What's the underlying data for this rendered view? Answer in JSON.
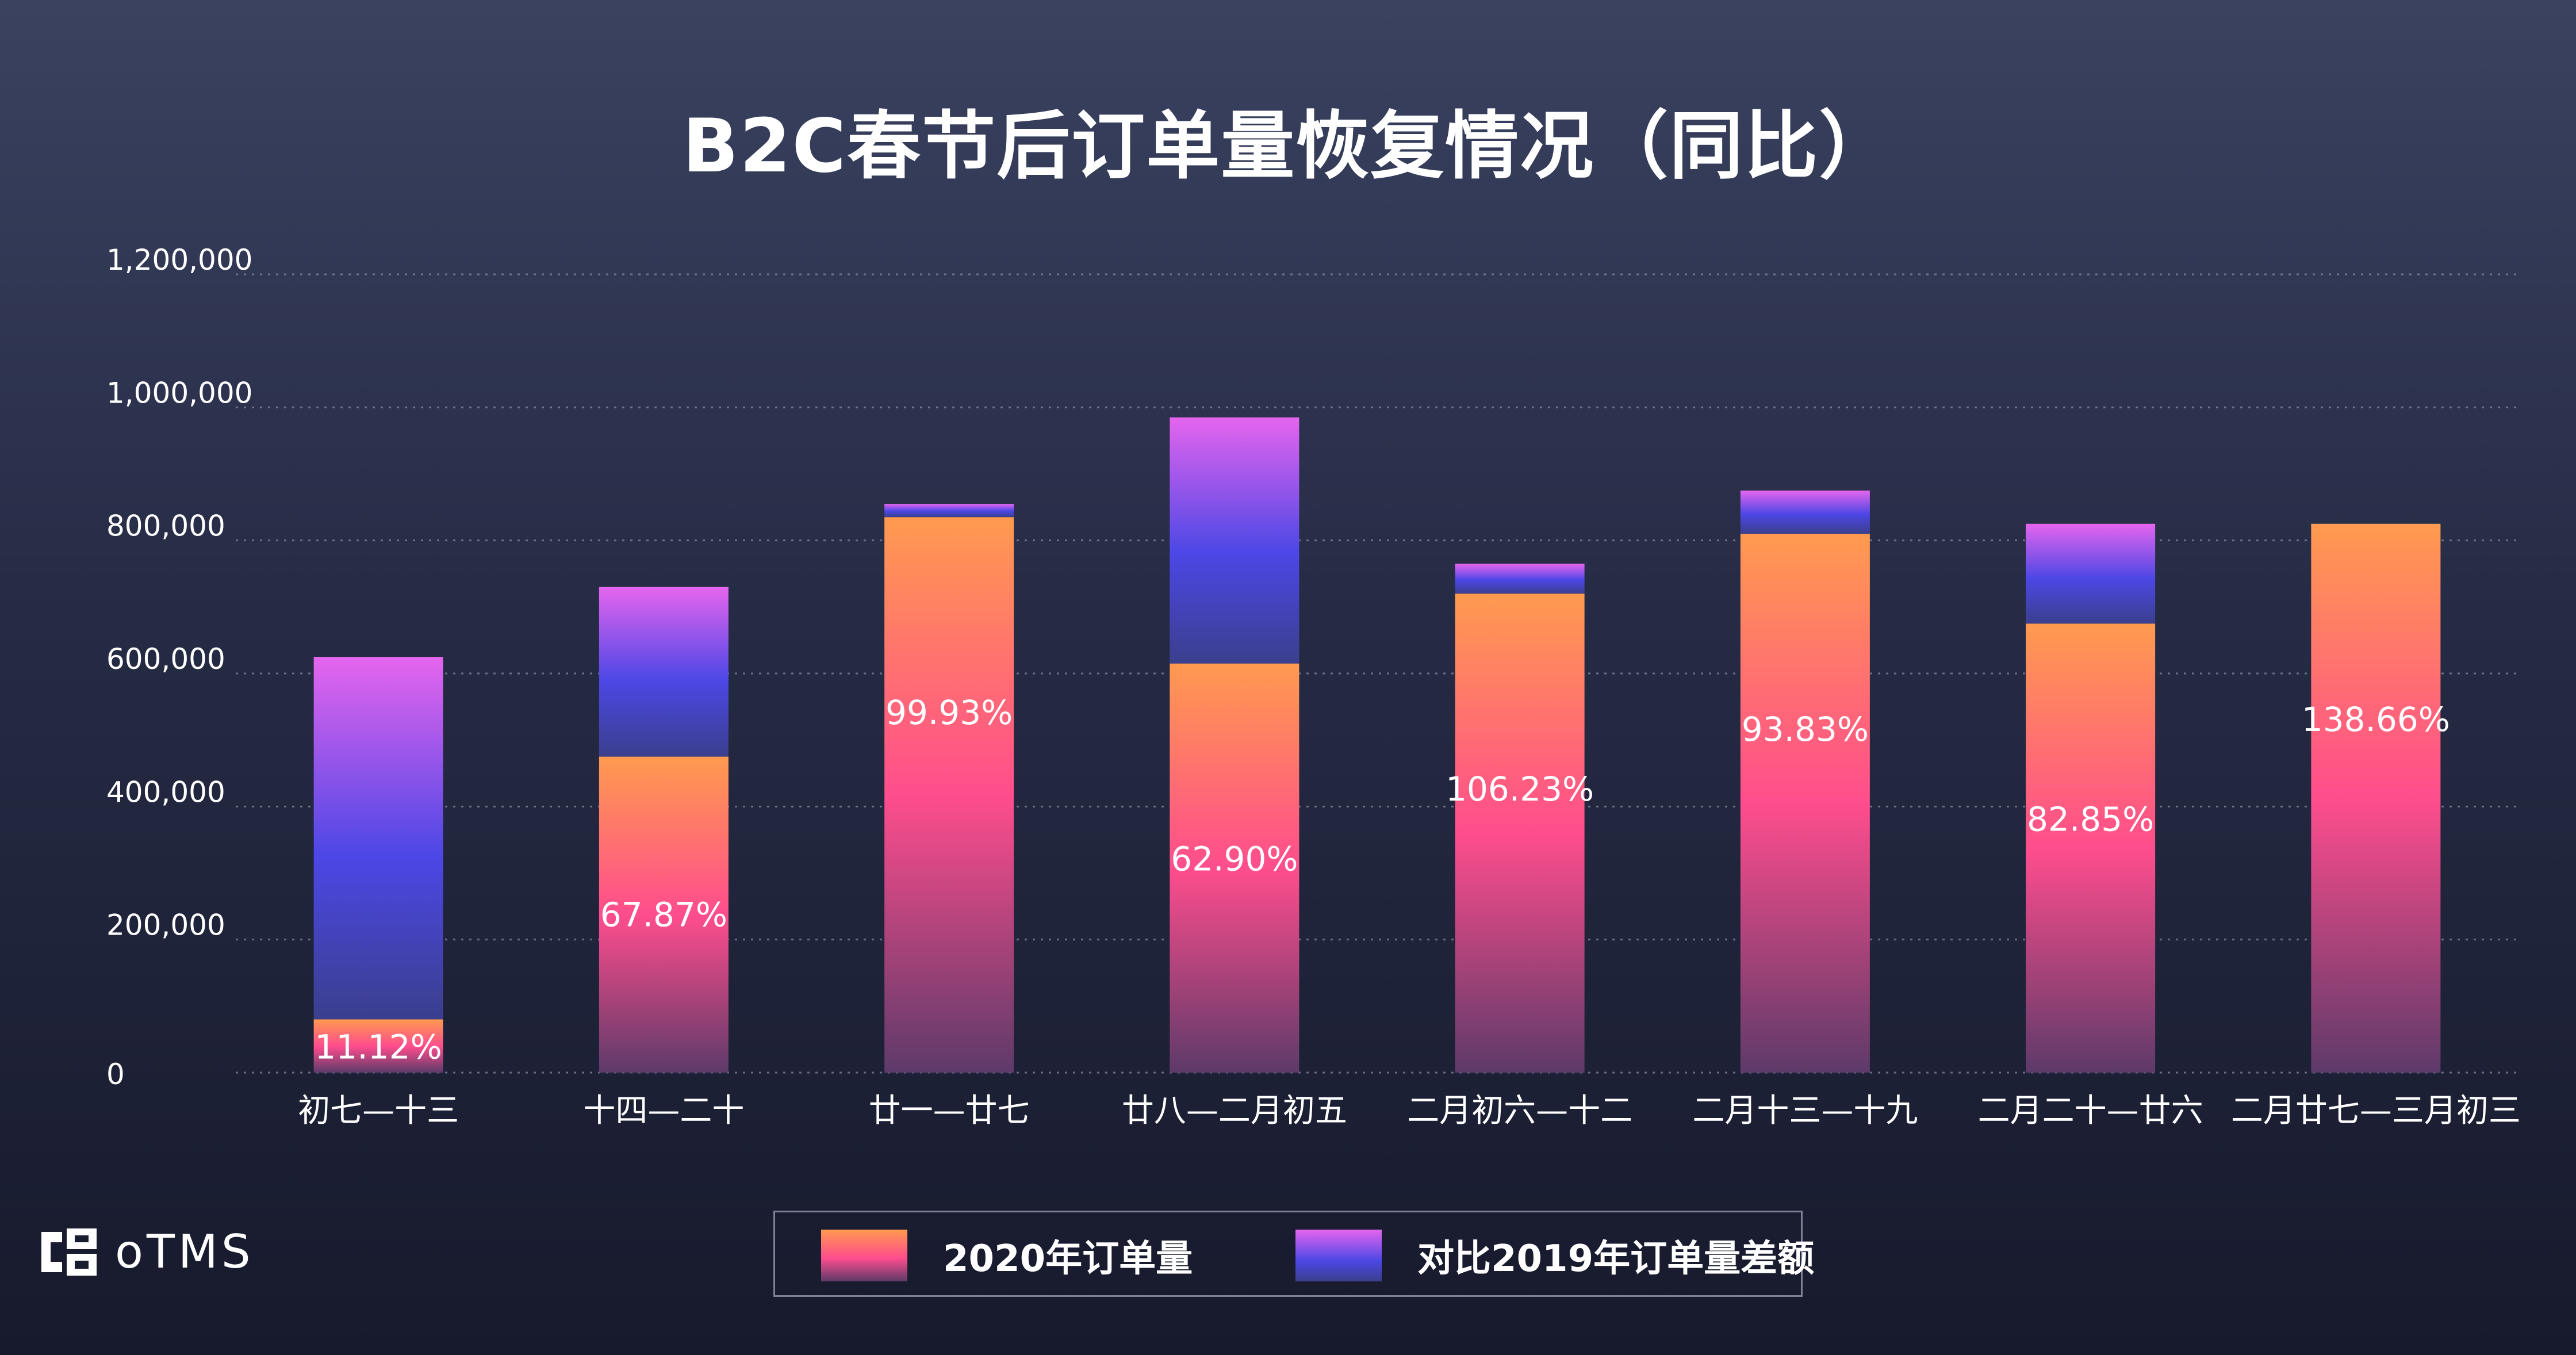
{
  "chart_data": {
    "type": "bar",
    "stacked": true,
    "title": "B2C春节后订单量恢复情况（同比）",
    "categories": [
      "初七—十三",
      "十四—二十",
      "廿一—廿七",
      "廿八—二月初五",
      "二月初六—十二",
      "二月十三—十九",
      "二月二十—廿六",
      "二月廿七—三月初三"
    ],
    "series": [
      {
        "name": "2020年订单量",
        "values": [
          80000,
          475000,
          835000,
          615000,
          720000,
          810000,
          675000,
          825000
        ]
      },
      {
        "name": "对比2019年订单量差额",
        "values": [
          545000,
          255000,
          20000,
          370000,
          45000,
          65000,
          150000,
          0
        ]
      }
    ],
    "data_labels": [
      "11.12%",
      "67.87%",
      "99.93%",
      "62.90%",
      "106.23%",
      "93.83%",
      "82.85%",
      "138.66%"
    ],
    "ytick_labels": [
      "0",
      "200,000",
      "400,000",
      "600,000",
      "800,000",
      "1,000,000",
      "1,200,000"
    ],
    "yticks": [
      0,
      200000,
      400000,
      600000,
      800000,
      1000000,
      1200000
    ],
    "ylim": [
      0,
      1200000
    ],
    "grid": true,
    "legend_position": "bottom",
    "xlabel": "",
    "ylabel": "",
    "colors": {
      "series_2020": [
        "#ff9a4f",
        "#ff4d8d",
        "#5d3a69"
      ],
      "series_diff": [
        "#e565ee",
        "#4c47e6",
        "#3b3f8d"
      ],
      "gridline": "#8a90a8",
      "label_text": "#ffffff"
    }
  },
  "legend": {
    "items": [
      {
        "label": "2020年订单量"
      },
      {
        "label": "对比2019年订单量差额"
      }
    ]
  },
  "brand": {
    "logo_text": "oTMS",
    "logo_icon": "otms-logo-icon"
  }
}
